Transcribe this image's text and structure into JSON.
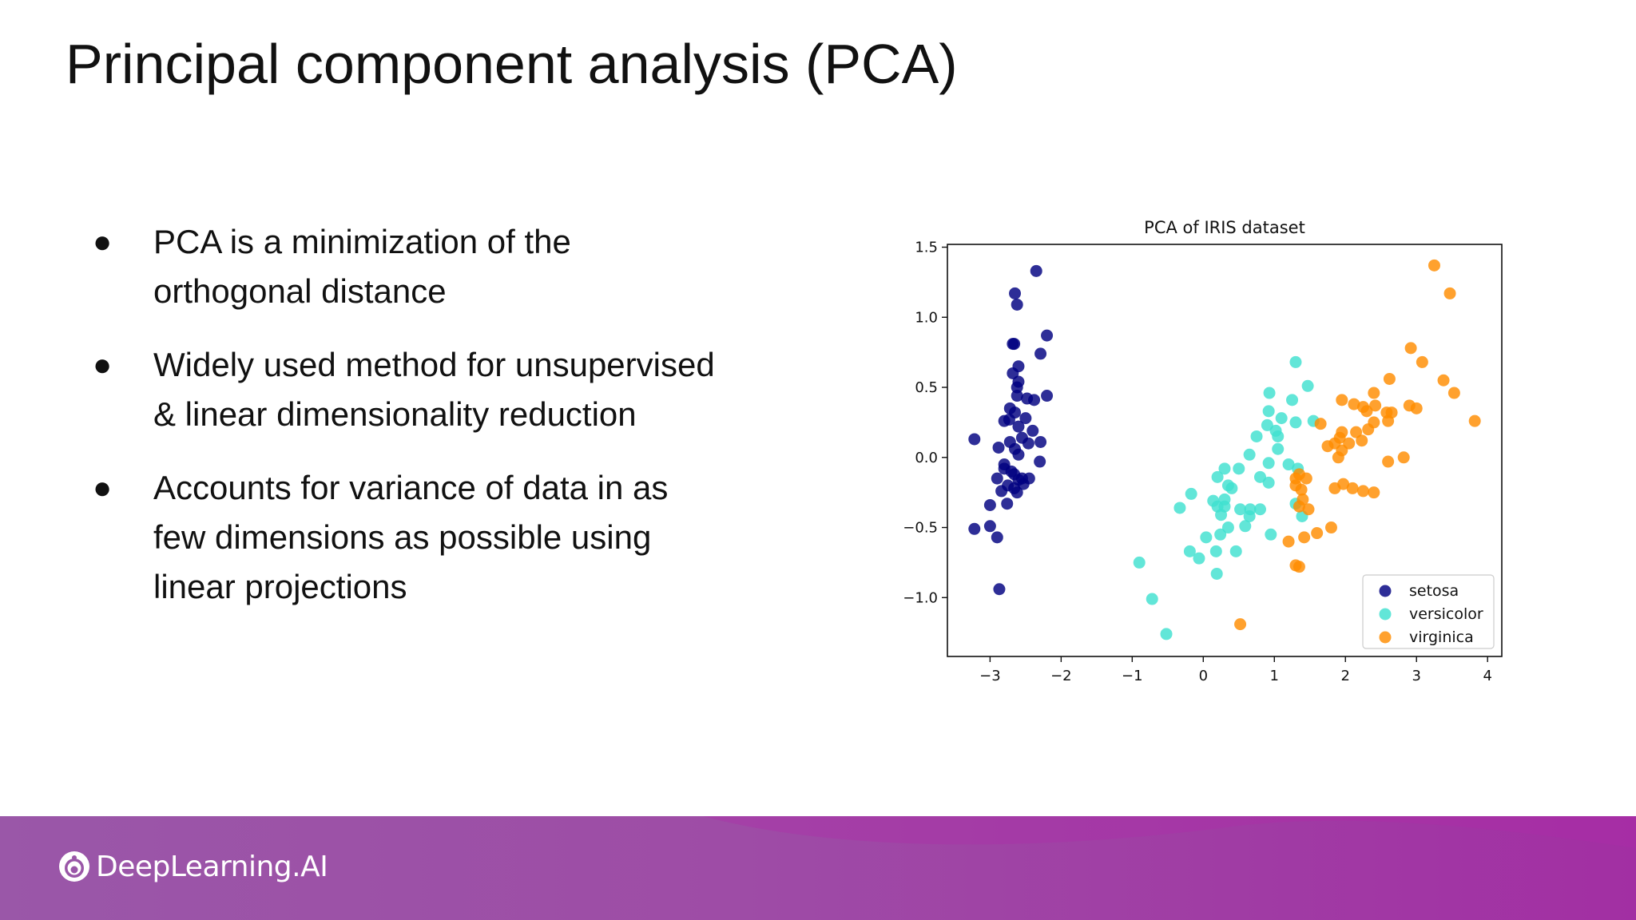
{
  "slide": {
    "title": "Principal component analysis (PCA)",
    "bullets": [
      {
        "marker": "●",
        "lines": [
          "PCA is a minimization of the",
          "orthogonal distance"
        ]
      },
      {
        "marker": "●",
        "lines": [
          "Widely used method for unsupervised",
          "& linear dimensionality reduction"
        ]
      },
      {
        "marker": "●",
        "lines": [
          "Accounts for variance of data in as",
          "few dimensions as possible using",
          "linear projections"
        ]
      }
    ]
  },
  "footer": {
    "brand": "DeepLearning.AI",
    "icon": "deeplearning-ai-logo-icon",
    "colors": {
      "left": "#9a57a8",
      "right": "#a22fa3"
    }
  },
  "chart_data": {
    "type": "scatter",
    "title": "PCA of IRIS dataset",
    "xlabel": "",
    "ylabel": "",
    "xlim": [
      -3.6,
      4.2
    ],
    "ylim": [
      -1.42,
      1.52
    ],
    "xticks": [
      -3,
      -2,
      -1,
      0,
      1,
      2,
      3,
      4
    ],
    "yticks": [
      -1.0,
      -0.5,
      0.0,
      0.5,
      1.0,
      1.5
    ],
    "xtick_labels": [
      "−3",
      "−2",
      "−1",
      "0",
      "1",
      "2",
      "3",
      "4"
    ],
    "ytick_labels": [
      "−1.0",
      "−0.5",
      "0.0",
      "0.5",
      "1.0",
      "1.5"
    ],
    "grid": false,
    "legend_position": "bottom-right",
    "series": [
      {
        "name": "setosa",
        "color": "#000080",
        "points": [
          [
            -2.35,
            1.33
          ],
          [
            -2.65,
            1.17
          ],
          [
            -2.62,
            1.09
          ],
          [
            -2.68,
            0.81
          ],
          [
            -2.66,
            0.81
          ],
          [
            -2.2,
            0.87
          ],
          [
            -2.29,
            0.74
          ],
          [
            -2.6,
            0.65
          ],
          [
            -2.68,
            0.6
          ],
          [
            -2.6,
            0.54
          ],
          [
            -2.62,
            0.5
          ],
          [
            -2.62,
            0.44
          ],
          [
            -2.2,
            0.44
          ],
          [
            -2.38,
            0.41
          ],
          [
            -2.48,
            0.42
          ],
          [
            -2.72,
            0.35
          ],
          [
            -2.65,
            0.32
          ],
          [
            -2.8,
            0.26
          ],
          [
            -2.73,
            0.27
          ],
          [
            -2.6,
            0.22
          ],
          [
            -2.4,
            0.19
          ],
          [
            -2.55,
            0.14
          ],
          [
            -2.72,
            0.11
          ],
          [
            -2.29,
            0.11
          ],
          [
            -2.46,
            0.1
          ],
          [
            -2.88,
            0.07
          ],
          [
            -2.65,
            0.06
          ],
          [
            -2.6,
            0.02
          ],
          [
            -2.3,
            -0.03
          ],
          [
            -2.8,
            -0.08
          ],
          [
            -2.9,
            -0.15
          ],
          [
            -2.66,
            -0.12
          ],
          [
            -2.6,
            -0.16
          ],
          [
            -2.55,
            -0.15
          ],
          [
            -2.45,
            -0.15
          ],
          [
            -2.75,
            -0.2
          ],
          [
            -2.66,
            -0.22
          ],
          [
            -2.84,
            -0.24
          ],
          [
            -2.62,
            -0.25
          ],
          [
            -2.76,
            -0.33
          ],
          [
            -3.22,
            0.13
          ],
          [
            -3.0,
            -0.34
          ],
          [
            -3.22,
            -0.51
          ],
          [
            -3.0,
            -0.49
          ],
          [
            -2.9,
            -0.57
          ],
          [
            -2.87,
            -0.94
          ],
          [
            -2.7,
            -0.1
          ],
          [
            -2.5,
            0.28
          ],
          [
            -2.8,
            -0.05
          ],
          [
            -2.53,
            -0.19
          ]
        ]
      },
      {
        "name": "versicolor",
        "color": "#40e0d0",
        "points": [
          [
            1.3,
            0.68
          ],
          [
            1.47,
            0.51
          ],
          [
            0.93,
            0.46
          ],
          [
            1.25,
            0.41
          ],
          [
            0.92,
            0.33
          ],
          [
            1.1,
            0.28
          ],
          [
            1.02,
            0.19
          ],
          [
            1.3,
            0.25
          ],
          [
            1.55,
            0.26
          ],
          [
            0.9,
            0.23
          ],
          [
            0.75,
            0.15
          ],
          [
            1.05,
            0.15
          ],
          [
            1.05,
            0.06
          ],
          [
            0.65,
            0.02
          ],
          [
            0.92,
            -0.04
          ],
          [
            1.2,
            -0.05
          ],
          [
            1.33,
            -0.08
          ],
          [
            0.8,
            -0.14
          ],
          [
            0.92,
            -0.18
          ],
          [
            0.3,
            -0.08
          ],
          [
            0.5,
            -0.08
          ],
          [
            0.2,
            -0.14
          ],
          [
            0.35,
            -0.2
          ],
          [
            0.4,
            -0.22
          ],
          [
            0.3,
            -0.3
          ],
          [
            0.14,
            -0.31
          ],
          [
            0.2,
            -0.35
          ],
          [
            0.3,
            -0.35
          ],
          [
            0.25,
            -0.41
          ],
          [
            0.52,
            -0.37
          ],
          [
            0.66,
            -0.37
          ],
          [
            0.8,
            -0.37
          ],
          [
            0.65,
            -0.42
          ],
          [
            0.59,
            -0.49
          ],
          [
            0.35,
            -0.5
          ],
          [
            0.24,
            -0.55
          ],
          [
            0.04,
            -0.57
          ],
          [
            0.46,
            -0.67
          ],
          [
            0.18,
            -0.67
          ],
          [
            -0.19,
            -0.67
          ],
          [
            -0.06,
            -0.72
          ],
          [
            0.19,
            -0.83
          ],
          [
            -0.17,
            -0.26
          ],
          [
            -0.33,
            -0.36
          ],
          [
            1.3,
            -0.33
          ],
          [
            1.39,
            -0.42
          ],
          [
            0.95,
            -0.55
          ],
          [
            -0.9,
            -0.75
          ],
          [
            -0.72,
            -1.01
          ],
          [
            -0.52,
            -1.26
          ]
        ]
      },
      {
        "name": "virginica",
        "color": "#ff8c00",
        "points": [
          [
            3.25,
            1.37
          ],
          [
            3.47,
            1.17
          ],
          [
            2.92,
            0.78
          ],
          [
            3.08,
            0.68
          ],
          [
            3.38,
            0.55
          ],
          [
            3.53,
            0.46
          ],
          [
            3.82,
            0.26
          ],
          [
            2.62,
            0.56
          ],
          [
            2.4,
            0.46
          ],
          [
            2.65,
            0.32
          ],
          [
            2.25,
            0.36
          ],
          [
            2.12,
            0.38
          ],
          [
            1.95,
            0.41
          ],
          [
            2.3,
            0.33
          ],
          [
            2.42,
            0.37
          ],
          [
            2.58,
            0.32
          ],
          [
            2.4,
            0.25
          ],
          [
            2.6,
            0.26
          ],
          [
            2.9,
            0.37
          ],
          [
            3.0,
            0.35
          ],
          [
            1.65,
            0.24
          ],
          [
            1.95,
            0.18
          ],
          [
            1.92,
            0.14
          ],
          [
            2.15,
            0.18
          ],
          [
            2.32,
            0.2
          ],
          [
            2.23,
            0.12
          ],
          [
            1.75,
            0.08
          ],
          [
            1.85,
            0.1
          ],
          [
            1.95,
            0.05
          ],
          [
            2.05,
            0.1
          ],
          [
            2.6,
            -0.03
          ],
          [
            2.82,
            0.0
          ],
          [
            1.35,
            -0.12
          ],
          [
            1.3,
            -0.15
          ],
          [
            1.45,
            -0.15
          ],
          [
            1.3,
            -0.2
          ],
          [
            1.38,
            -0.23
          ],
          [
            1.85,
            -0.22
          ],
          [
            1.97,
            -0.19
          ],
          [
            2.1,
            -0.22
          ],
          [
            2.25,
            -0.24
          ],
          [
            2.4,
            -0.25
          ],
          [
            1.35,
            -0.35
          ],
          [
            1.48,
            -0.37
          ],
          [
            1.2,
            -0.6
          ],
          [
            1.42,
            -0.57
          ],
          [
            1.6,
            -0.54
          ],
          [
            1.8,
            -0.5
          ],
          [
            1.3,
            -0.77
          ],
          [
            1.35,
            -0.78
          ],
          [
            0.52,
            -1.19
          ],
          [
            1.4,
            -0.3
          ],
          [
            1.9,
            0.0
          ]
        ]
      }
    ]
  }
}
